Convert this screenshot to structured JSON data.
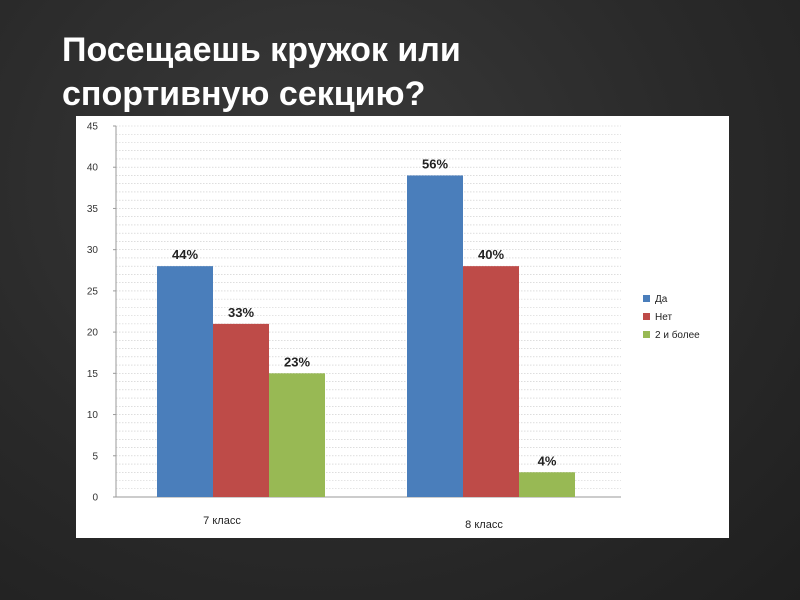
{
  "slide": {
    "title_line1": "Посещаешь кружок или",
    "title_line2": "спортивную секцию?"
  },
  "colors": {
    "background": "#2b2b2b",
    "title_text": "#ffffff",
    "panel": "#ffffff"
  },
  "chart_data": {
    "type": "bar",
    "categories": [
      "7 класс",
      "8 класс"
    ],
    "series": [
      {
        "name": "Да",
        "color": "#4a7ebb",
        "values": [
          28,
          39
        ],
        "labels": [
          "44%",
          "56%"
        ]
      },
      {
        "name": "Нет",
        "color": "#be4b48",
        "values": [
          21,
          28
        ],
        "labels": [
          "33%",
          "40%"
        ]
      },
      {
        "name": "2 и более",
        "color": "#98b954",
        "values": [
          15,
          3
        ],
        "labels": [
          "23%",
          "4%"
        ]
      }
    ],
    "ylim": [
      0,
      45
    ],
    "yticks": [
      0,
      5,
      10,
      15,
      20,
      25,
      30,
      35,
      40,
      45
    ],
    "grid": true,
    "legend": "right"
  }
}
